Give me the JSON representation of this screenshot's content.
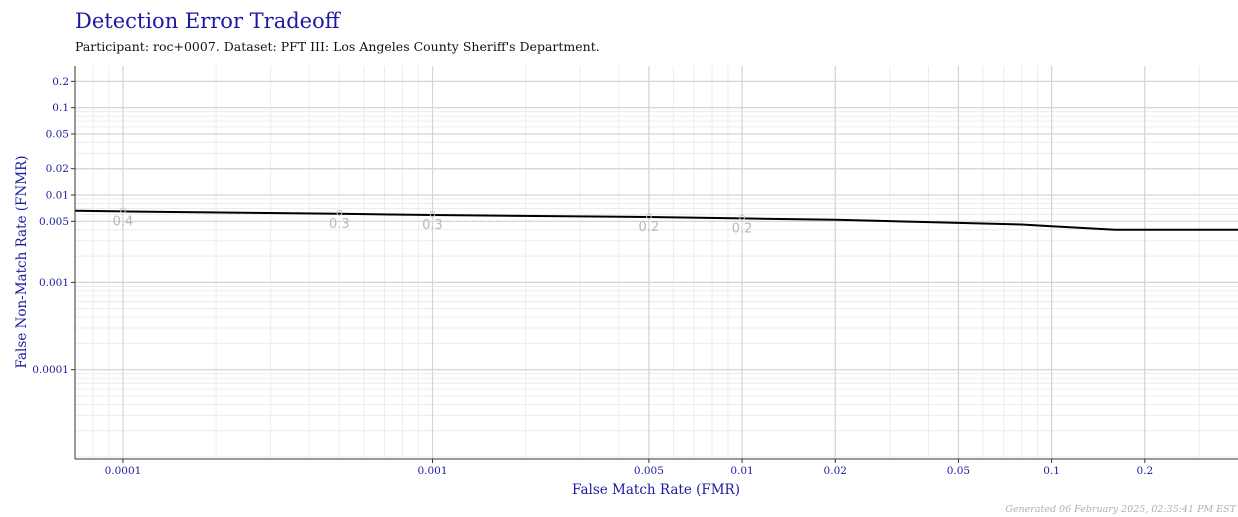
{
  "chart_data": {
    "type": "line",
    "title": "Detection Error Tradeoff",
    "subtitle": "Participant: roc+0007. Dataset: PFT III: Los Angeles County Sheriff's Department.",
    "xlabel": "False Match Rate (FMR)",
    "ylabel": "False Non-Match Rate (FNMR)",
    "x_scale": "log",
    "y_scale": "log",
    "xlim": [
      7e-05,
      0.4
    ],
    "ylim": [
      9.5e-06,
      0.3
    ],
    "x_ticks": [
      "0.0001",
      "0.001",
      "0.005",
      "0.01",
      "0.02",
      "0.05",
      "0.1",
      "0.2"
    ],
    "y_ticks": [
      "0.2",
      "0.1",
      "0.05",
      "0.02",
      "0.01",
      "0.005",
      "0.001",
      "0.0001"
    ],
    "grid": true,
    "series": [
      {
        "x": [
          7e-05,
          0.0001,
          0.0005,
          0.001,
          0.005,
          0.01,
          0.02,
          0.05,
          0.08,
          0.1,
          0.16,
          0.2,
          0.4
        ],
        "y": [
          0.0066,
          0.0065,
          0.0061,
          0.0059,
          0.0056,
          0.0054,
          0.0052,
          0.0048,
          0.0046,
          0.0044,
          0.004,
          0.004,
          0.004
        ],
        "color": "#000000"
      }
    ],
    "annotations": [
      {
        "text": "0.4",
        "x": 0.0001,
        "y": 0.0065
      },
      {
        "text": "0.3",
        "x": 0.0005,
        "y": 0.0061
      },
      {
        "text": "0.3",
        "x": 0.001,
        "y": 0.0059
      },
      {
        "text": "0.2",
        "x": 0.005,
        "y": 0.0056
      },
      {
        "text": "0.2",
        "x": 0.01,
        "y": 0.0054
      }
    ]
  },
  "footer": "Generated 06 February 2025, 02:35:41 PM EST"
}
